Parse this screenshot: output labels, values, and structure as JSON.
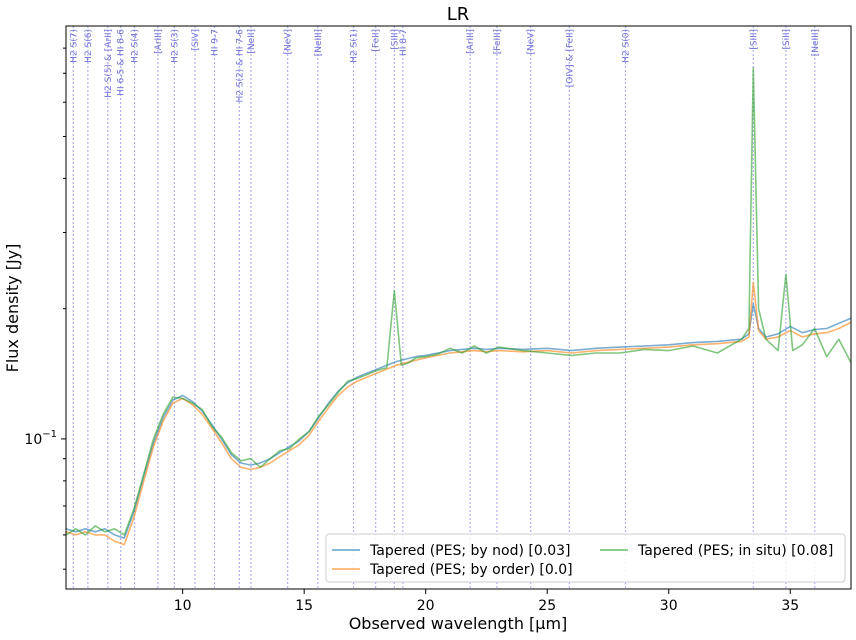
{
  "chart_data": {
    "type": "line",
    "title": "LR",
    "xlabel": "Observed wavelength [μm]",
    "ylabel": "Flux density [Jy]",
    "xlim": [
      5.2,
      37.5
    ],
    "ylim": [
      0.045,
      0.9
    ],
    "yscale": "log",
    "x_ticks": [
      10,
      15,
      20,
      25,
      30,
      35
    ],
    "x_tick_labels": [
      "10",
      "15",
      "20",
      "25",
      "30",
      "35"
    ],
    "y_ticks": [
      0.1
    ],
    "y_tick_labels": [
      "10$^{-1}$"
    ],
    "y_tick_label_base": "10",
    "y_tick_label_exp": "−1",
    "grid": false,
    "legend_position": "lower-right",
    "line_markers": [
      {
        "label": "H2 S(7)",
        "x": 5.5
      },
      {
        "label": "H2 S(6)",
        "x": 6.1
      },
      {
        "label": "H2 S(5) & [ArII]",
        "x": 6.92
      },
      {
        "label": "HI 6-5 & HI 8-6",
        "x": 7.45
      },
      {
        "label": "H2 S(4)",
        "x": 8.02
      },
      {
        "label": "[ArIII]",
        "x": 8.98
      },
      {
        "label": "H2 S(3)",
        "x": 9.66
      },
      {
        "label": "[SIV]",
        "x": 10.51
      },
      {
        "label": "HI 9-7",
        "x": 11.31
      },
      {
        "label": "H2 S(2) & HI 7-6",
        "x": 12.33
      },
      {
        "label": "[NeII]",
        "x": 12.81
      },
      {
        "label": "[NeV]",
        "x": 14.32
      },
      {
        "label": "[NeIII]",
        "x": 15.56
      },
      {
        "label": "H2 S(1)",
        "x": 17.03
      },
      {
        "label": "[FeII]",
        "x": 17.94
      },
      {
        "label": "[SIII]",
        "x": 18.71
      },
      {
        "label": "HI 8-7",
        "x": 19.06
      },
      {
        "label": "[ArIII]",
        "x": 21.83
      },
      {
        "label": "[FeIII]",
        "x": 22.93
      },
      {
        "label": "[NeV]",
        "x": 24.32
      },
      {
        "label": "[OIV] & [FeII]",
        "x": 25.91
      },
      {
        "label": "H2 S(0)",
        "x": 28.22
      },
      {
        "label": "[SIII]",
        "x": 33.48
      },
      {
        "label": "[SiII]",
        "x": 34.82
      },
      {
        "label": "[NeIII]",
        "x": 36.01
      }
    ],
    "series": [
      {
        "name": "Tapered (PES; by nod) [0.03]",
        "color": "#1f77b4",
        "x": [
          5.2,
          5.6,
          6.0,
          6.4,
          6.8,
          7.2,
          7.6,
          8.0,
          8.4,
          8.8,
          9.2,
          9.6,
          10.0,
          10.4,
          10.8,
          11.2,
          11.6,
          12.0,
          12.4,
          12.8,
          13.2,
          13.6,
          14.0,
          14.4,
          14.8,
          15.2,
          15.6,
          16.0,
          16.4,
          16.8,
          17.2,
          17.6,
          18.0,
          18.4,
          18.8,
          19.2,
          19.6,
          20.0,
          20.5,
          21.0,
          21.5,
          22.0,
          22.5,
          23.0,
          24.0,
          25.0,
          26.0,
          27.0,
          28.0,
          29.0,
          30.0,
          31.0,
          32.0,
          33.0,
          33.3,
          33.48,
          33.7,
          34.0,
          34.5,
          35.0,
          35.5,
          36.0,
          36.5,
          37.0,
          37.5
        ],
        "values": [
          0.062,
          0.061,
          0.062,
          0.061,
          0.062,
          0.06,
          0.059,
          0.068,
          0.082,
          0.098,
          0.112,
          0.123,
          0.126,
          0.122,
          0.116,
          0.108,
          0.1,
          0.092,
          0.088,
          0.087,
          0.088,
          0.09,
          0.093,
          0.096,
          0.099,
          0.104,
          0.112,
          0.121,
          0.129,
          0.135,
          0.139,
          0.142,
          0.145,
          0.148,
          0.151,
          0.153,
          0.155,
          0.156,
          0.158,
          0.16,
          0.161,
          0.162,
          0.161,
          0.162,
          0.161,
          0.162,
          0.16,
          0.162,
          0.163,
          0.164,
          0.165,
          0.167,
          0.168,
          0.17,
          0.175,
          0.205,
          0.18,
          0.172,
          0.175,
          0.182,
          0.176,
          0.179,
          0.18,
          0.185,
          0.19
        ]
      },
      {
        "name": "Tapered (PES; by order) [0.0]",
        "color": "#ff7f0e",
        "x": [
          5.2,
          5.6,
          6.0,
          6.4,
          6.8,
          7.2,
          7.6,
          8.0,
          8.4,
          8.8,
          9.2,
          9.6,
          10.0,
          10.4,
          10.8,
          11.2,
          11.6,
          12.0,
          12.4,
          12.8,
          13.2,
          13.6,
          14.0,
          14.4,
          14.8,
          15.2,
          15.6,
          16.0,
          16.4,
          16.8,
          17.2,
          17.6,
          18.0,
          18.4,
          18.8,
          19.2,
          19.6,
          20.0,
          20.5,
          21.0,
          21.5,
          22.0,
          22.5,
          23.0,
          24.0,
          25.0,
          26.0,
          27.0,
          28.0,
          29.0,
          30.0,
          31.0,
          32.0,
          33.0,
          33.3,
          33.48,
          33.7,
          34.0,
          34.5,
          35.0,
          35.5,
          36.0,
          36.5,
          37.0,
          37.5
        ],
        "values": [
          0.061,
          0.06,
          0.061,
          0.06,
          0.06,
          0.058,
          0.057,
          0.066,
          0.08,
          0.096,
          0.11,
          0.121,
          0.124,
          0.12,
          0.114,
          0.106,
          0.098,
          0.09,
          0.086,
          0.085,
          0.086,
          0.088,
          0.091,
          0.094,
          0.097,
          0.102,
          0.11,
          0.118,
          0.126,
          0.132,
          0.136,
          0.139,
          0.142,
          0.145,
          0.148,
          0.15,
          0.152,
          0.154,
          0.156,
          0.158,
          0.159,
          0.16,
          0.159,
          0.16,
          0.159,
          0.16,
          0.158,
          0.16,
          0.161,
          0.162,
          0.163,
          0.165,
          0.166,
          0.168,
          0.172,
          0.23,
          0.178,
          0.17,
          0.172,
          0.178,
          0.172,
          0.175,
          0.176,
          0.18,
          0.186
        ]
      },
      {
        "name": "Tapered (PES; in situ) [0.08]",
        "color": "#2ca02c",
        "x": [
          5.2,
          5.6,
          6.0,
          6.4,
          6.8,
          7.2,
          7.6,
          8.0,
          8.4,
          8.8,
          9.2,
          9.6,
          10.0,
          10.4,
          10.8,
          11.2,
          11.6,
          12.0,
          12.4,
          12.8,
          13.2,
          13.6,
          14.0,
          14.4,
          14.8,
          15.2,
          15.6,
          16.0,
          16.4,
          16.8,
          17.2,
          17.6,
          18.0,
          18.4,
          18.71,
          19.0,
          19.3,
          19.6,
          20.0,
          20.5,
          21.0,
          21.5,
          22.0,
          22.5,
          23.0,
          24.0,
          25.0,
          26.0,
          27.0,
          28.0,
          29.0,
          30.0,
          31.0,
          32.0,
          33.0,
          33.3,
          33.48,
          33.7,
          34.0,
          34.5,
          34.82,
          35.1,
          35.5,
          36.0,
          36.5,
          37.0,
          37.5
        ],
        "values": [
          0.06,
          0.062,
          0.06,
          0.063,
          0.061,
          0.062,
          0.06,
          0.069,
          0.083,
          0.1,
          0.114,
          0.125,
          0.124,
          0.121,
          0.117,
          0.107,
          0.101,
          0.093,
          0.089,
          0.09,
          0.086,
          0.09,
          0.094,
          0.095,
          0.1,
          0.104,
          0.113,
          0.12,
          0.128,
          0.136,
          0.138,
          0.141,
          0.144,
          0.146,
          0.22,
          0.148,
          0.15,
          0.154,
          0.155,
          0.157,
          0.162,
          0.158,
          0.164,
          0.158,
          0.163,
          0.16,
          0.158,
          0.156,
          0.158,
          0.158,
          0.161,
          0.16,
          0.164,
          0.158,
          0.17,
          0.18,
          0.72,
          0.2,
          0.17,
          0.16,
          0.24,
          0.16,
          0.165,
          0.18,
          0.155,
          0.17,
          0.15
        ]
      }
    ]
  }
}
